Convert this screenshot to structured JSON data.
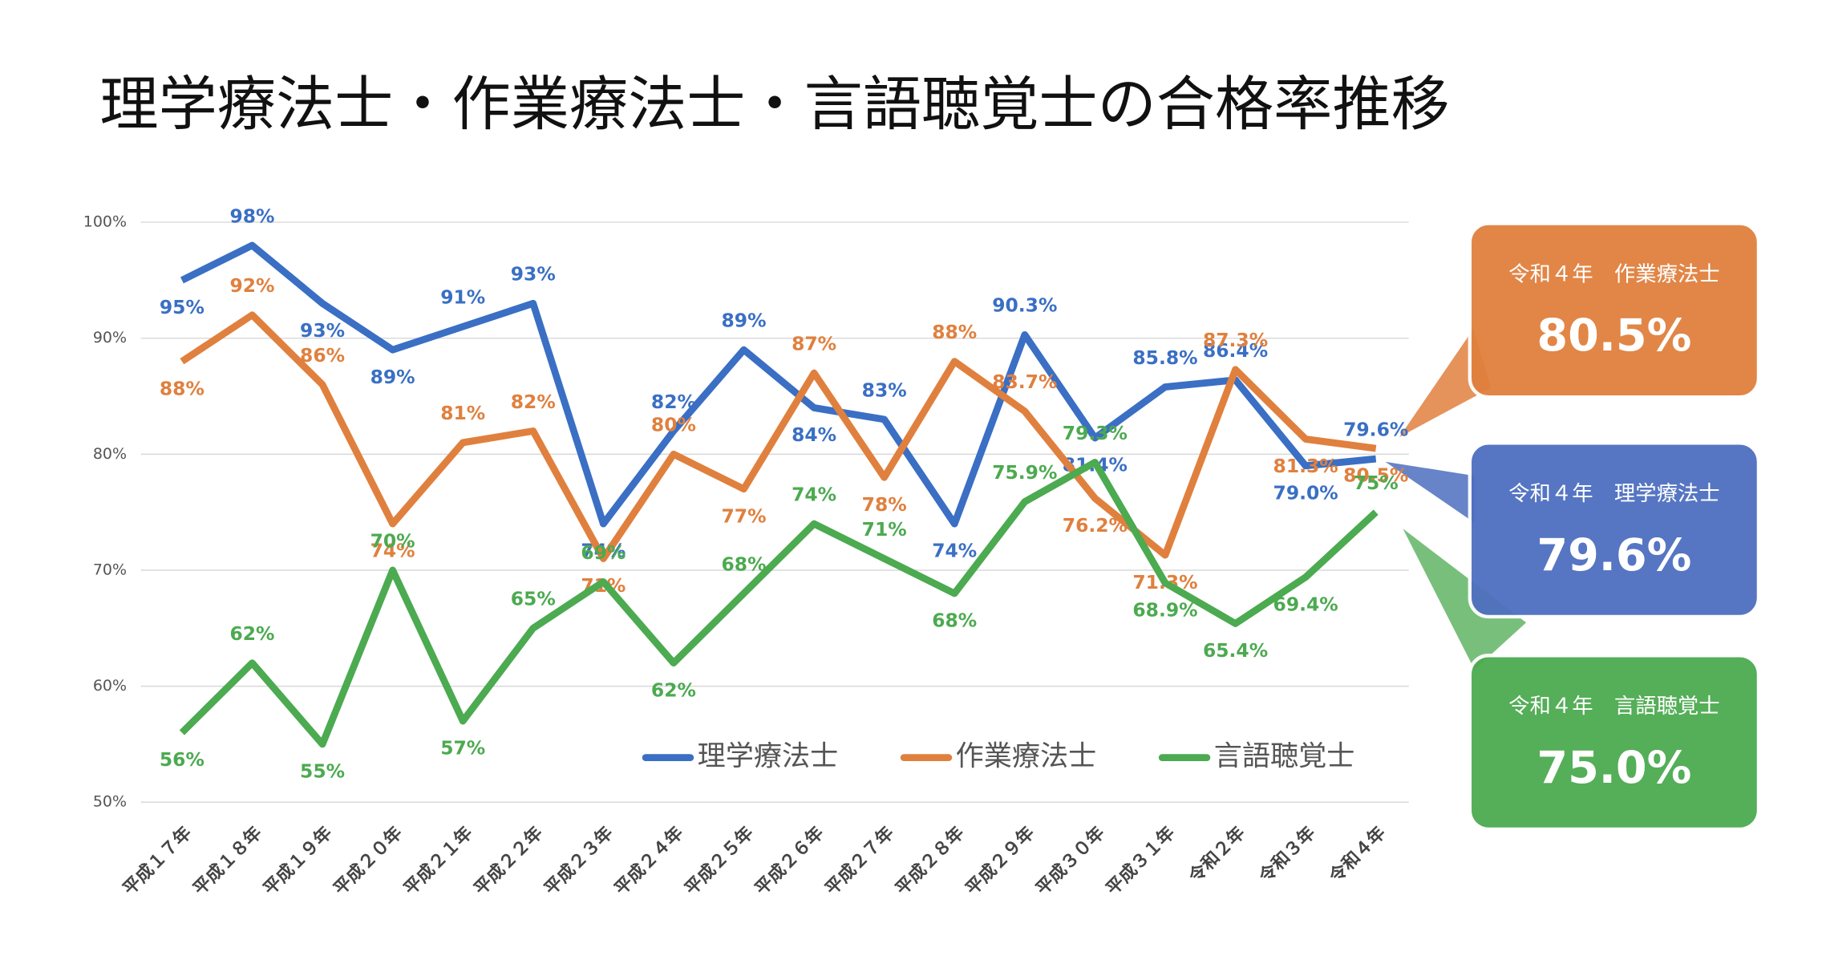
{
  "chart_data": {
    "type": "line",
    "title": "理学療法士・作業療法士・言語聴覚士の合格率推移",
    "categories": [
      "平成１７年",
      "平成１８年",
      "平成１９年",
      "平成２０年",
      "平成２１年",
      "平成２２年",
      "平成２３年",
      "平成２４年",
      "平成２５年",
      "平成２６年",
      "平成２７年",
      "平成２８年",
      "平成２９年",
      "平成３０年",
      "平成３１年",
      "令和２年",
      "令和３年",
      "令和４年"
    ],
    "series": [
      {
        "name": "理学療法士",
        "color": "#3a6fc4",
        "values": [
          95,
          98,
          93,
          89,
          91,
          93,
          74,
          82,
          89,
          84,
          83,
          74,
          90.3,
          81.4,
          85.8,
          86.4,
          79.0,
          79.6
        ],
        "value_labels": [
          "95%",
          "98%",
          "93%",
          "89%",
          "91%",
          "93%",
          "74%",
          "82%",
          "89%",
          "84%",
          "83%",
          "74%",
          "90.3%",
          "81.4%",
          "85.8%",
          "86.4%",
          "79.0%",
          "79.6%"
        ]
      },
      {
        "name": "作業療法士",
        "color": "#e0803e",
        "values": [
          88,
          92,
          86,
          74,
          81,
          82,
          71,
          80,
          77,
          87,
          78,
          88,
          83.7,
          76.2,
          71.3,
          87.3,
          81.3,
          80.5
        ],
        "value_labels": [
          "88%",
          "92%",
          "86%",
          "74%",
          "81%",
          "82%",
          "71%",
          "80%",
          "77%",
          "87%",
          "78%",
          "88%",
          "83.7%",
          "76.2%",
          "71.3%",
          "87.3%",
          "81.3%",
          "80.5%"
        ]
      },
      {
        "name": "言語聴覚士",
        "color": "#4caa50",
        "values": [
          56,
          62,
          55,
          70,
          57,
          65,
          69,
          62,
          68,
          74,
          71,
          68,
          75.9,
          79.3,
          68.9,
          65.4,
          69.4,
          75
        ],
        "value_labels": [
          "56%",
          "62%",
          "55%",
          "70%",
          "57%",
          "65%",
          "69%",
          "62%",
          "68%",
          "74%",
          "71%",
          "68%",
          "75.9%",
          "79.3%",
          "68.9%",
          "65.4%",
          "69.4%",
          "75%"
        ]
      }
    ],
    "ylim": [
      50,
      100
    ],
    "yticks": [
      {
        "value": 50,
        "label": "50%"
      },
      {
        "value": 60,
        "label": "60%"
      },
      {
        "value": 70,
        "label": "70%"
      },
      {
        "value": 80,
        "label": "80%"
      },
      {
        "value": 90,
        "label": "90%"
      },
      {
        "value": 100,
        "label": "100%"
      }
    ],
    "grid": true,
    "legend": "bottom-right",
    "callouts": [
      {
        "label": "令和４年　作業療法士",
        "text": "80.5%",
        "color": "#e0803e"
      },
      {
        "label": "令和４年　理学療法士",
        "text": "79.6%",
        "color": "#4e6fc0"
      },
      {
        "label": "令和４年　言語聴覚士",
        "text": "75.0%",
        "color": "#4caa50"
      }
    ]
  }
}
